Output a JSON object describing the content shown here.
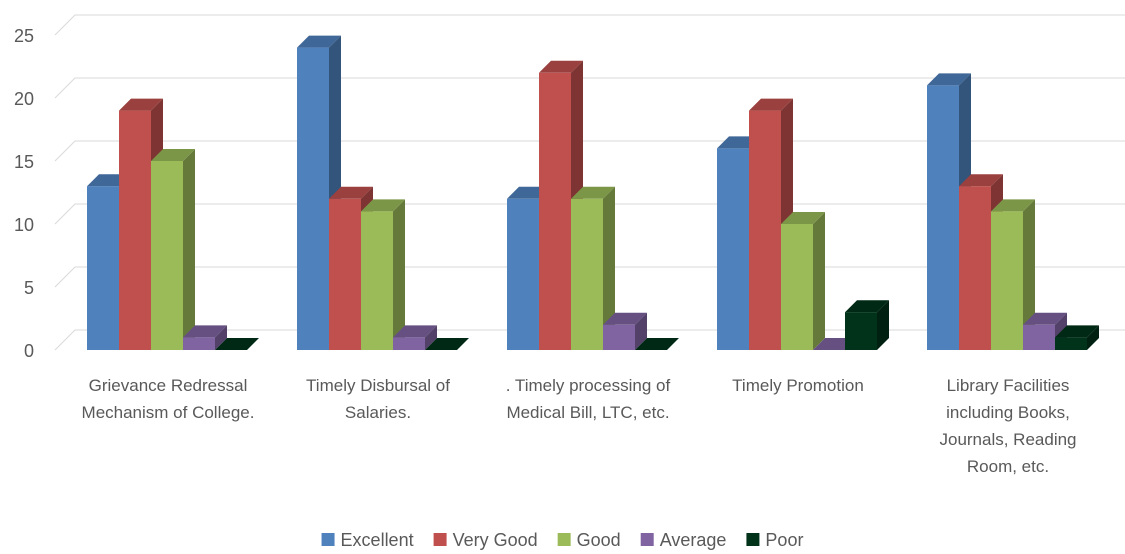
{
  "chart_data": {
    "type": "bar3d",
    "categories": [
      "Grievance Redressal Mechanism of College.",
      "Timely Disbursal of Salaries.",
      ". Timely processing of Medical Bill, LTC, etc.",
      "Timely Promotion",
      "Library Facilities including Books, Journals, Reading Room, etc."
    ],
    "series": [
      {
        "name": "Excellent",
        "color": "#4f81bd",
        "values": [
          13,
          24,
          12,
          16,
          21
        ]
      },
      {
        "name": "Very Good",
        "color": "#c0504d",
        "values": [
          19,
          12,
          22,
          19,
          13
        ]
      },
      {
        "name": "Good",
        "color": "#9bbb59",
        "values": [
          15,
          11,
          12,
          10,
          11
        ]
      },
      {
        "name": "Average",
        "color": "#8064a2",
        "values": [
          1,
          1,
          2,
          0,
          2
        ]
      },
      {
        "name": "Poor",
        "color": "#00331a",
        "values": [
          0,
          0,
          0,
          3,
          1
        ]
      }
    ],
    "ylim": [
      0,
      25
    ],
    "yticks": [
      0,
      5,
      10,
      15,
      20,
      25
    ],
    "grid": true,
    "legend": "bottom"
  }
}
